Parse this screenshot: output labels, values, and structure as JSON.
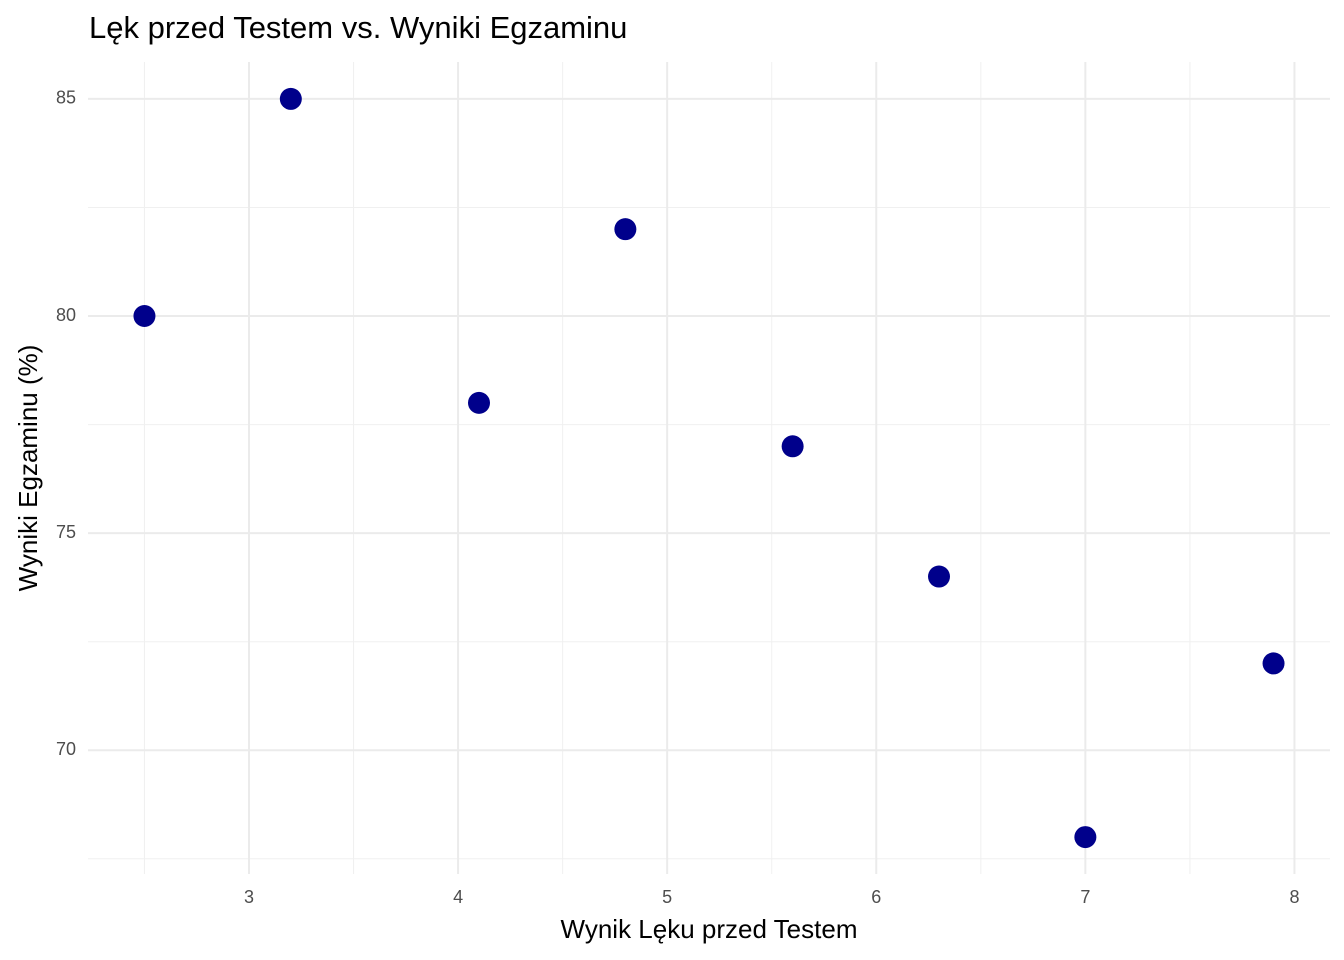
{
  "chart_data": {
    "type": "scatter",
    "title": "Lęk przed Testem vs. Wyniki Egzaminu",
    "x_label": "Wynik Lęku przed Testem",
    "y_label": "Wyniki Egzaminu (%)",
    "series": [
      {
        "color": "#00008b",
        "x": [
          2.5,
          3.2,
          4.1,
          4.8,
          5.6,
          6.3,
          7.0,
          7.9
        ],
        "values": [
          80,
          85,
          78,
          82,
          77,
          74,
          68,
          72
        ]
      }
    ],
    "xlim": [
      2.23,
      8.17
    ],
    "ylim": [
      67.15,
      85.85
    ],
    "xticks": [
      3,
      4,
      5,
      6,
      7,
      8
    ],
    "yticks": [
      70,
      75,
      80,
      85
    ],
    "grid": true,
    "minor_grid": true
  }
}
